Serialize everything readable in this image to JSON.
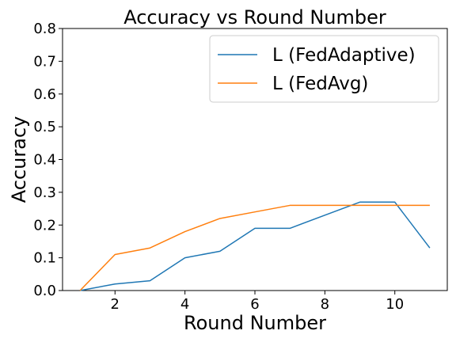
{
  "chart_data": {
    "type": "line",
    "title": "Accuracy vs Round Number",
    "xlabel": "Round Number",
    "ylabel": "Accuracy",
    "xlim": [
      0.5,
      11.5
    ],
    "ylim": [
      0.0,
      0.8
    ],
    "xticks": [
      2,
      4,
      6,
      8,
      10
    ],
    "yticks": [
      0.0,
      0.1,
      0.2,
      0.3,
      0.4,
      0.5,
      0.6,
      0.7,
      0.8
    ],
    "grid": false,
    "legend_position": "top-right",
    "x": [
      1,
      2,
      3,
      4,
      5,
      6,
      7,
      8,
      9,
      10,
      11
    ],
    "series": [
      {
        "name": "L (FedAdaptive)",
        "color": "#1f77b4",
        "values": [
          0.0,
          0.02,
          0.03,
          0.1,
          0.12,
          0.19,
          0.19,
          0.23,
          0.27,
          0.27,
          0.13
        ]
      },
      {
        "name": "L (FedAvg)",
        "color": "#ff7f0e",
        "values": [
          0.0,
          0.11,
          0.13,
          0.18,
          0.22,
          0.24,
          0.26,
          0.26,
          0.26,
          0.26,
          0.26
        ]
      }
    ]
  }
}
